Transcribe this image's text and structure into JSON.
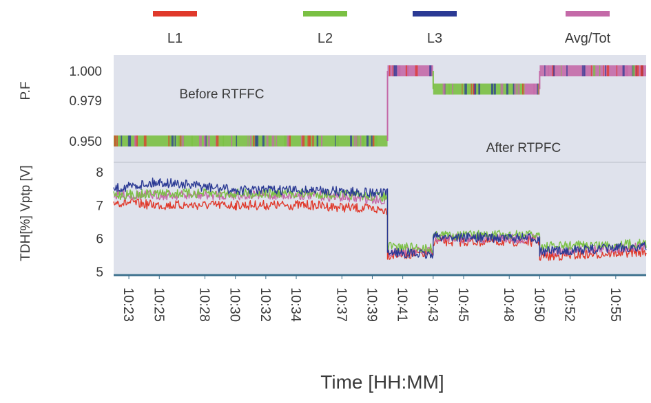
{
  "chart_data": {
    "type": "line",
    "xlabel": "Time [HH:MM]",
    "x_ticks": [
      "10:23",
      "10:25",
      "10:28",
      "10:30",
      "10:32",
      "10:34",
      "10:37",
      "10:39",
      "10:41",
      "10:43",
      "10:45",
      "10:48",
      "10:50",
      "10:52",
      "10:55"
    ],
    "legend_position": "top",
    "grid": false,
    "series": [
      {
        "name": "L1",
        "color": "#e0392b"
      },
      {
        "name": "L2",
        "color": "#7ac043"
      },
      {
        "name": "L3",
        "color": "#2b3a94"
      },
      {
        "name": "Avg/Tot",
        "color": "#c46aa8"
      }
    ],
    "panels": [
      {
        "id": "pf",
        "ylabel": "P.F",
        "y_ticks": [
          "0.950",
          "0.979",
          "1.000"
        ],
        "y_tick_values": [
          0.95,
          0.979,
          1.0
        ],
        "segments": [
          {
            "x_start": "10:22",
            "x_end": "10:40",
            "value": 0.95,
            "series": "L2"
          },
          {
            "x_start": "10:40",
            "x_end": "10:43",
            "value": 1.0,
            "series": "Avg/Tot"
          },
          {
            "x_start": "10:43",
            "x_end": "10:49",
            "value": 0.987,
            "series": "L2"
          },
          {
            "x_start": "10:49",
            "x_end": "10:50",
            "value": 0.987,
            "series": "Avg/Tot"
          },
          {
            "x_start": "10:50",
            "x_end": "10:57",
            "value": 1.0,
            "series": "Avg/Tot"
          }
        ]
      },
      {
        "id": "vptp",
        "ylabel": "TDH[%] Vptp [V]",
        "y_ticks": [
          "5",
          "6",
          "7",
          "8"
        ],
        "y_tick_values": [
          5,
          6,
          7,
          8
        ],
        "series_values": [
          {
            "name": "L1",
            "points": [
              [
                "10:22",
                7.1
              ],
              [
                "10:25",
                7.0
              ],
              [
                "10:30",
                7.0
              ],
              [
                "10:35",
                7.0
              ],
              [
                "10:40",
                6.85
              ],
              [
                "10:40",
                5.5
              ],
              [
                "10:43",
                5.55
              ],
              [
                "10:43",
                5.9
              ],
              [
                "10:50",
                5.9
              ],
              [
                "10:50",
                5.45
              ],
              [
                "10:57",
                5.6
              ]
            ]
          },
          {
            "name": "L2",
            "points": [
              [
                "10:22",
                7.3
              ],
              [
                "10:25",
                7.35
              ],
              [
                "10:30",
                7.35
              ],
              [
                "10:35",
                7.35
              ],
              [
                "10:40",
                7.25
              ],
              [
                "10:40",
                5.75
              ],
              [
                "10:43",
                5.7
              ],
              [
                "10:43",
                6.1
              ],
              [
                "10:50",
                6.1
              ],
              [
                "10:50",
                5.75
              ],
              [
                "10:57",
                5.85
              ]
            ]
          },
          {
            "name": "L3",
            "points": [
              [
                "10:22",
                7.5
              ],
              [
                "10:25",
                7.7
              ],
              [
                "10:30",
                7.45
              ],
              [
                "10:35",
                7.45
              ],
              [
                "10:40",
                7.35
              ],
              [
                "10:40",
                5.6
              ],
              [
                "10:43",
                5.5
              ],
              [
                "10:43",
                6.05
              ],
              [
                "10:50",
                6.0
              ],
              [
                "10:50",
                5.6
              ],
              [
                "10:57",
                5.75
              ]
            ]
          },
          {
            "name": "Avg/Tot",
            "points": [
              [
                "10:22",
                7.3
              ],
              [
                "10:25",
                7.3
              ],
              [
                "10:30",
                7.3
              ],
              [
                "10:35",
                7.3
              ],
              [
                "10:40",
                7.15
              ],
              [
                "10:40",
                5.6
              ],
              [
                "10:43",
                5.6
              ],
              [
                "10:43",
                6.0
              ],
              [
                "10:50",
                6.0
              ],
              [
                "10:50",
                5.6
              ],
              [
                "10:57",
                5.75
              ]
            ]
          }
        ]
      }
    ],
    "annotations": [
      "Before RTFFC",
      "After RTPFC"
    ],
    "x_range": [
      "10:22",
      "10:57"
    ]
  }
}
